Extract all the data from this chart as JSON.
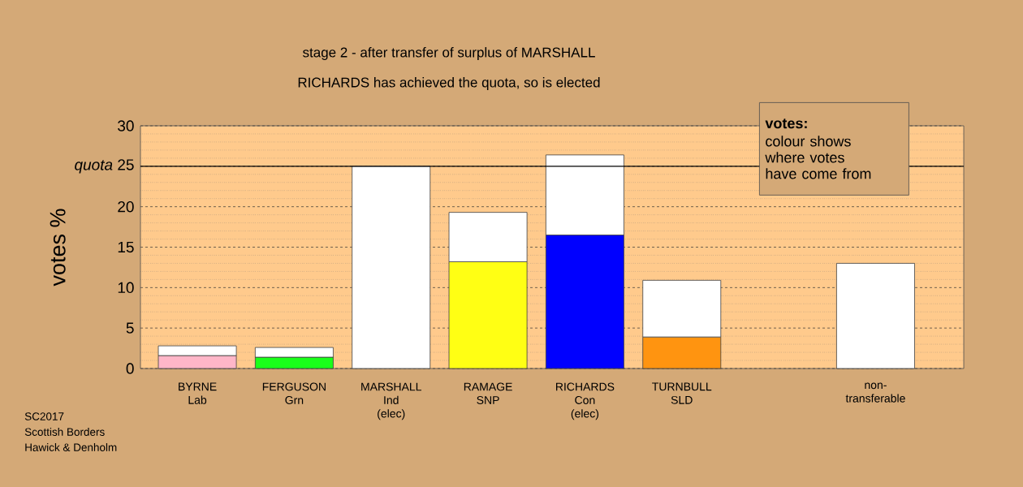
{
  "chart_data": {
    "type": "bar",
    "stacked": true,
    "title": "stage 2 - after transfer of surplus of MARSHALL",
    "subtitle": "RICHARDS has achieved the quota, so is elected",
    "ylabel": "votes %",
    "categories": [
      "BYRNE Lab",
      "FERGUSON Grn",
      "MARSHALL Ind (elec)",
      "RAMAGE SNP",
      "RICHARDS Con (elec)",
      "TURNBULL SLD",
      null,
      "non-transferable"
    ],
    "series": [
      {
        "colors": [
          "#ffb6c8",
          "#1aff1a",
          null,
          "#ffff14",
          "#0000ff",
          "#ff9410",
          null,
          null
        ],
        "values": [
          1.6,
          1.4,
          null,
          13.2,
          16.5,
          3.9,
          null,
          null
        ]
      },
      {
        "color": "#ffffff",
        "values": [
          1.2,
          1.2,
          25,
          6.1,
          9.9,
          7.0,
          null,
          13.0
        ]
      }
    ],
    "ylim": [
      0,
      30
    ],
    "yticks": [
      0,
      5,
      10,
      15,
      20,
      {
        "value": 25,
        "label": "*quota* 25"
      },
      30
    ],
    "grid": "y",
    "ref_lines": [
      {
        "axis": "y",
        "value": 25,
        "color": "#000000"
      }
    ],
    "annotations": [
      "votes:",
      "colour shows where votes have come from",
      "SC2017",
      "Scottish Borders",
      "Hawick & Denholm"
    ]
  }
}
